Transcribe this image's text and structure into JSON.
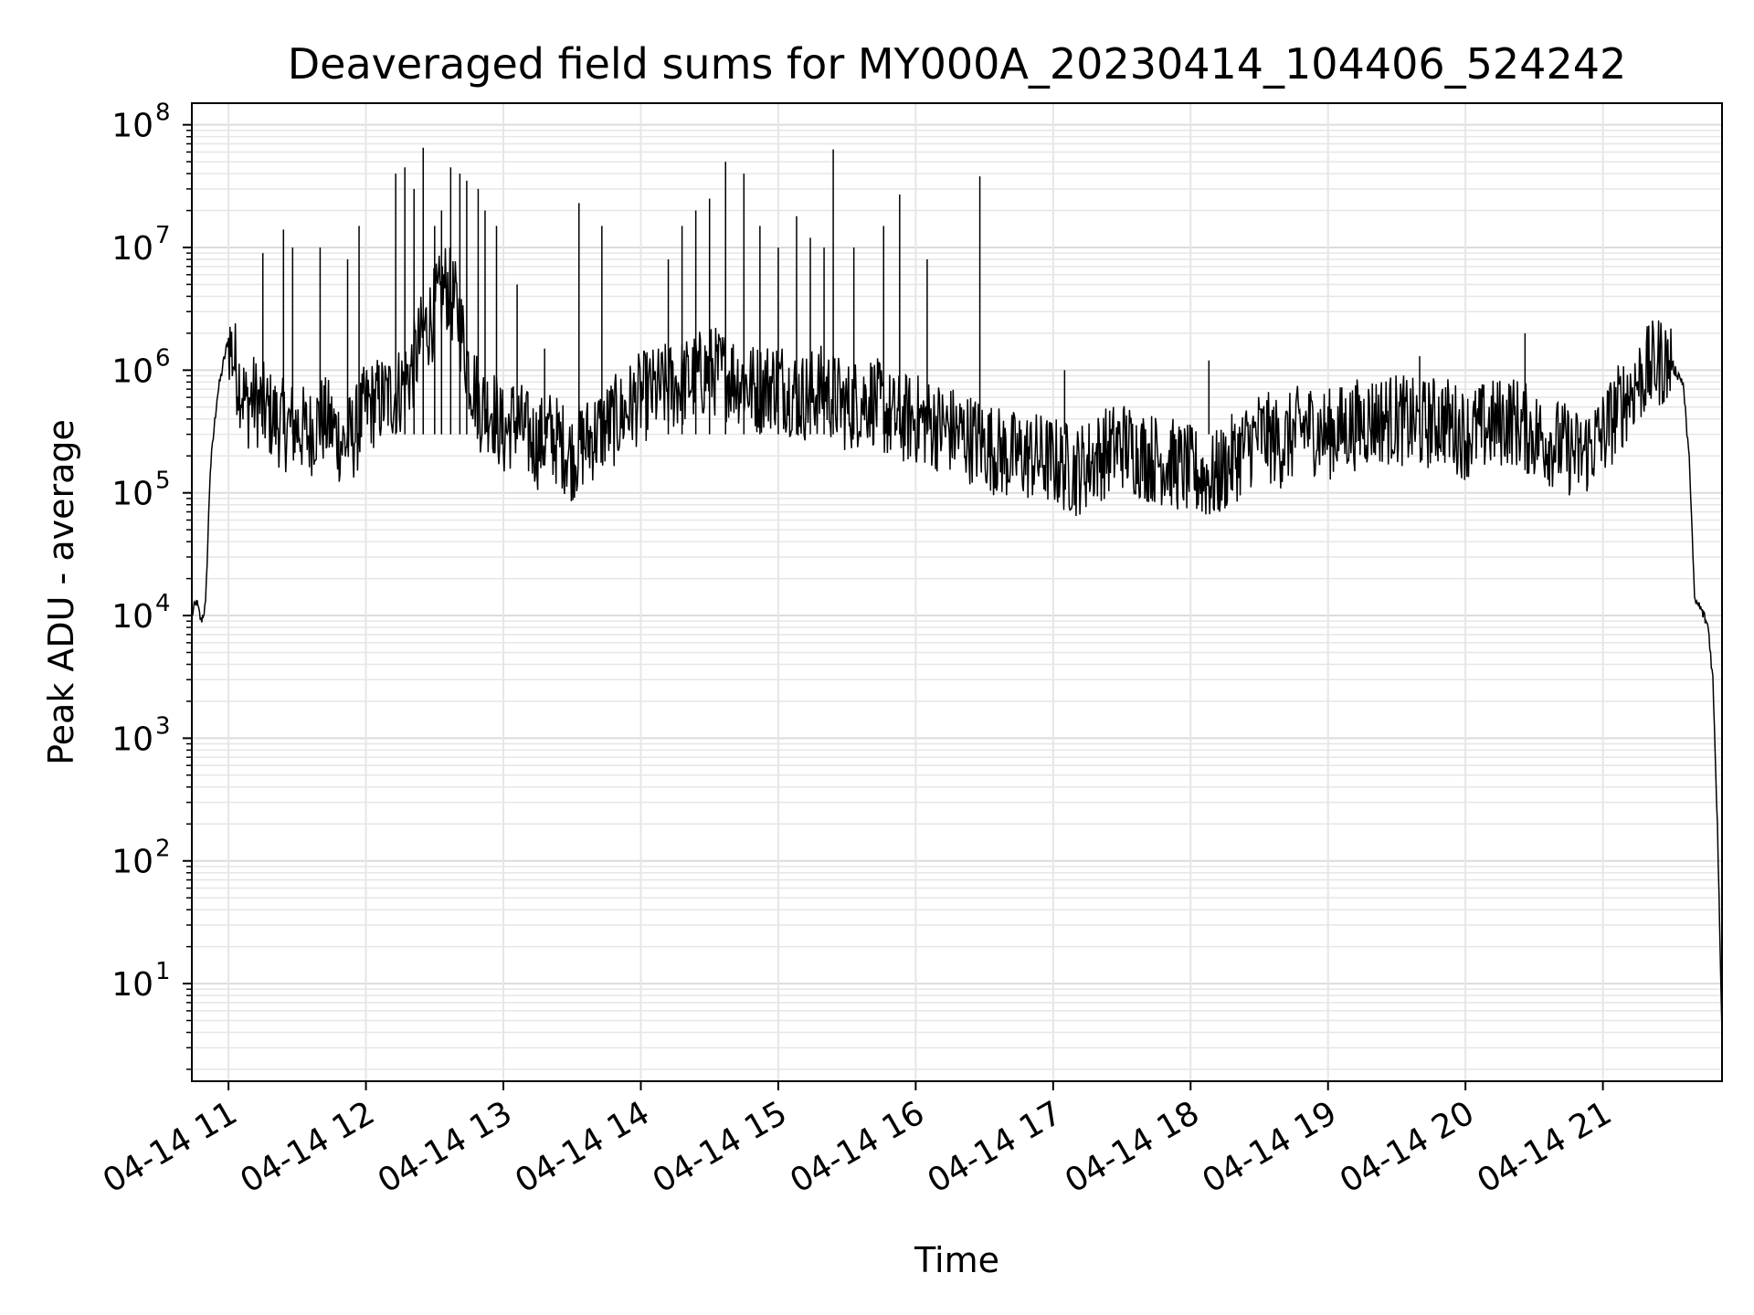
{
  "chart_data": {
    "type": "line",
    "title": "Deaveraged field sums for MY000A_20230414_104406_524242",
    "xlabel": "Time",
    "ylabel": "Peak ADU - average",
    "y_scale": "log",
    "ylim": [
      1.6,
      150000000
    ],
    "xlim": [
      "04-14 10:44",
      "04-14 21:52"
    ],
    "grid": true,
    "legend": "none",
    "line_color": "#000000",
    "x_tick_labels": [
      "04-14 11",
      "04-14 12",
      "04-14 13",
      "04-14 14",
      "04-14 15",
      "04-14 16",
      "04-14 17",
      "04-14 18",
      "04-14 19",
      "04-14 20",
      "04-14 21"
    ],
    "y_tick_labels": [
      {
        "base": "10",
        "exp": "1",
        "value": 10
      },
      {
        "base": "10",
        "exp": "2",
        "value": 100
      },
      {
        "base": "10",
        "exp": "3",
        "value": 1000
      },
      {
        "base": "10",
        "exp": "4",
        "value": 10000
      },
      {
        "base": "10",
        "exp": "5",
        "value": 100000
      },
      {
        "base": "10",
        "exp": "6",
        "value": 1000000
      },
      {
        "base": "10",
        "exp": "7",
        "value": 10000000
      },
      {
        "base": "10",
        "exp": "8",
        "value": 100000000
      }
    ],
    "series": [
      {
        "x": [
          "04-14 10:44",
          "04-14 10:46",
          "04-14 10:48",
          "04-14 10:50",
          "04-14 10:52",
          "04-14 10:55",
          "04-14 10:58",
          "04-14 11:00",
          "04-14 11:02",
          "04-14 11:05",
          "04-14 11:08",
          "04-14 11:10",
          "04-14 11:15",
          "04-14 11:20",
          "04-14 11:25",
          "04-14 11:30",
          "04-14 11:35",
          "04-14 11:40",
          "04-14 11:45",
          "04-14 11:50",
          "04-14 11:55",
          "04-14 12:00",
          "04-14 12:05",
          "04-14 12:10",
          "04-14 12:15",
          "04-14 12:20",
          "04-14 12:25",
          "04-14 12:30",
          "04-14 12:35",
          "04-14 12:40",
          "04-14 12:45",
          "04-14 12:50",
          "04-14 12:55",
          "04-14 13:00",
          "04-14 13:05",
          "04-14 13:10",
          "04-14 13:15",
          "04-14 13:20",
          "04-14 13:25",
          "04-14 13:30",
          "04-14 13:35",
          "04-14 13:40",
          "04-14 13:45",
          "04-14 13:50",
          "04-14 13:55",
          "04-14 14:00",
          "04-14 14:10",
          "04-14 14:20",
          "04-14 14:30",
          "04-14 14:40",
          "04-14 14:50",
          "04-14 15:00",
          "04-14 15:10",
          "04-14 15:20",
          "04-14 15:30",
          "04-14 15:40",
          "04-14 15:50",
          "04-14 16:00",
          "04-14 16:10",
          "04-14 16:20",
          "04-14 16:30",
          "04-14 16:40",
          "04-14 16:50",
          "04-14 17:00",
          "04-14 17:10",
          "04-14 17:20",
          "04-14 17:30",
          "04-14 17:40",
          "04-14 17:50",
          "04-14 18:00",
          "04-14 18:10",
          "04-14 18:20",
          "04-14 18:30",
          "04-14 18:40",
          "04-14 18:50",
          "04-14 19:00",
          "04-14 19:10",
          "04-14 19:20",
          "04-14 19:30",
          "04-14 19:40",
          "04-14 19:50",
          "04-14 20:00",
          "04-14 20:10",
          "04-14 20:20",
          "04-14 20:30",
          "04-14 20:40",
          "04-14 20:50",
          "04-14 21:00",
          "04-14 21:10",
          "04-14 21:15",
          "04-14 21:20",
          "04-14 21:25",
          "04-14 21:30",
          "04-14 21:35",
          "04-14 21:38",
          "04-14 21:40",
          "04-14 21:42",
          "04-14 21:44",
          "04-14 21:46",
          "04-14 21:48",
          "04-14 21:50",
          "04-14 21:52"
        ],
        "y": [
          10000,
          13000,
          9000,
          12000,
          150000,
          600000,
          1200000,
          1800000,
          1300000,
          800000,
          500000,
          600000,
          500000,
          400000,
          350000,
          350000,
          300000,
          400000,
          350000,
          250000,
          300000,
          500000,
          550000,
          600000,
          700000,
          1000000,
          2000000,
          3000000,
          5000000,
          3000000,
          1000000,
          500000,
          500000,
          300000,
          400000,
          300000,
          250000,
          300000,
          250000,
          200000,
          250000,
          300000,
          350000,
          400000,
          500000,
          600000,
          700000,
          800000,
          1000000,
          900000,
          700000,
          800000,
          600000,
          700000,
          500000,
          600000,
          400000,
          400000,
          350000,
          300000,
          250000,
          200000,
          200000,
          180000,
          150000,
          200000,
          250000,
          200000,
          180000,
          150000,
          130000,
          200000,
          300000,
          250000,
          350000,
          300000,
          350000,
          400000,
          400000,
          350000,
          400000,
          300000,
          350000,
          400000,
          300000,
          250000,
          200000,
          300000,
          600000,
          800000,
          1000000,
          1200000,
          1100000,
          800000,
          150000,
          13000,
          12000,
          10000,
          8000,
          3000,
          200,
          4
        ]
      }
    ],
    "spikes": [
      {
        "x": "04-14 11:15",
        "y": 9000000
      },
      {
        "x": "04-14 11:24",
        "y": 14000000
      },
      {
        "x": "04-14 11:28",
        "y": 10000000
      },
      {
        "x": "04-14 11:40",
        "y": 10000000
      },
      {
        "x": "04-14 11:52",
        "y": 8000000
      },
      {
        "x": "04-14 11:57",
        "y": 15000000
      },
      {
        "x": "04-14 12:13",
        "y": 40000000
      },
      {
        "x": "04-14 12:17",
        "y": 45000000
      },
      {
        "x": "04-14 12:21",
        "y": 30000000
      },
      {
        "x": "04-14 12:25",
        "y": 65000000
      },
      {
        "x": "04-14 12:30",
        "y": 15000000
      },
      {
        "x": "04-14 12:33",
        "y": 20000000
      },
      {
        "x": "04-14 12:37",
        "y": 45000000
      },
      {
        "x": "04-14 12:41",
        "y": 40000000
      },
      {
        "x": "04-14 12:44",
        "y": 35000000
      },
      {
        "x": "04-14 12:49",
        "y": 30000000
      },
      {
        "x": "04-14 12:52",
        "y": 20000000
      },
      {
        "x": "04-14 12:57",
        "y": 15000000
      },
      {
        "x": "04-14 13:06",
        "y": 5000000
      },
      {
        "x": "04-14 13:18",
        "y": 1500000
      },
      {
        "x": "04-14 13:33",
        "y": 23000000
      },
      {
        "x": "04-14 13:43",
        "y": 15000000
      },
      {
        "x": "04-14 14:12",
        "y": 8000000
      },
      {
        "x": "04-14 14:18",
        "y": 15000000
      },
      {
        "x": "04-14 14:24",
        "y": 20000000
      },
      {
        "x": "04-14 14:30",
        "y": 25000000
      },
      {
        "x": "04-14 14:37",
        "y": 50000000
      },
      {
        "x": "04-14 14:45",
        "y": 40000000
      },
      {
        "x": "04-14 14:52",
        "y": 15000000
      },
      {
        "x": "04-14 15:00",
        "y": 10000000
      },
      {
        "x": "04-14 15:08",
        "y": 18000000
      },
      {
        "x": "04-14 15:14",
        "y": 12000000
      },
      {
        "x": "04-14 15:20",
        "y": 10000000
      },
      {
        "x": "04-14 15:24",
        "y": 63000000
      },
      {
        "x": "04-14 15:33",
        "y": 10000000
      },
      {
        "x": "04-14 15:46",
        "y": 15000000
      },
      {
        "x": "04-14 15:53",
        "y": 27000000
      },
      {
        "x": "04-14 16:05",
        "y": 8000000
      },
      {
        "x": "04-14 16:28",
        "y": 38000000
      },
      {
        "x": "04-14 17:05",
        "y": 1000000
      },
      {
        "x": "04-14 18:08",
        "y": 1200000
      },
      {
        "x": "04-14 19:40",
        "y": 1300000
      },
      {
        "x": "04-14 20:26",
        "y": 2000000
      }
    ]
  }
}
